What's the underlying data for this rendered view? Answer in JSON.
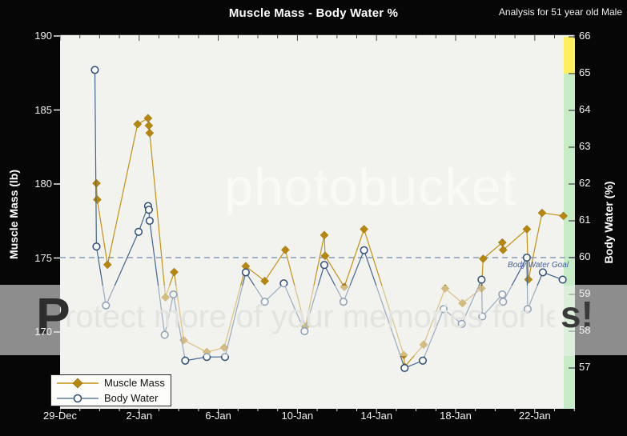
{
  "page": {
    "watermark_brand": "photobucket",
    "watermark_banner_first": "P",
    "watermark_banner_mid": "rotect more of your memories for les",
    "watermark_banner_end": "s!"
  },
  "chart_data": {
    "type": "line",
    "title": "Muscle Mass - Body Water %",
    "annotation": "Analysis for 51 year old Male",
    "x_axis": {
      "tick_labels": [
        "29-Dec",
        "2-Jan",
        "6-Jan",
        "10-Jan",
        "14-Jan",
        "18-Jan",
        "22-Jan"
      ],
      "tick_days": [
        0,
        4,
        8,
        12,
        16,
        20,
        24
      ],
      "minor_tick_interval_days": 1,
      "range_days": [
        0,
        26
      ]
    },
    "y_left": {
      "label": "Muscle Mass (lb)",
      "ticks": [
        190,
        185,
        180,
        175,
        170
      ],
      "range": [
        164.9,
        190.1
      ]
    },
    "y_right": {
      "label": "Body Water (%)",
      "ticks": [
        66,
        65,
        64,
        63,
        62,
        61,
        60,
        59,
        58,
        57
      ],
      "range": [
        55.9,
        66.0
      ]
    },
    "goal_line": {
      "label": "Body Water Goal",
      "axis": "right",
      "value": 60,
      "style": "dashed",
      "color": "#9fb0c9"
    },
    "bands": [
      {
        "axis": "right",
        "from": 65,
        "to": 66,
        "color": "#ffef5f"
      },
      {
        "axis": "right",
        "from": 55.9,
        "to": 65,
        "color": "#c6ecc6"
      }
    ],
    "legend_position": "bottom-left",
    "grid": false,
    "series": [
      {
        "name": "Muscle Mass",
        "axis": "left",
        "color": "#b8860b",
        "line_color": "#c49110",
        "marker": "diamond",
        "points": [
          [
            1.84,
            180.1
          ],
          [
            1.88,
            179.0
          ],
          [
            2.4,
            174.6
          ],
          [
            3.92,
            184.1
          ],
          [
            4.45,
            184.5
          ],
          [
            4.49,
            184.0
          ],
          [
            4.53,
            183.5
          ],
          [
            5.33,
            172.4
          ],
          [
            5.77,
            174.1
          ],
          [
            6.25,
            169.5
          ],
          [
            7.42,
            168.7
          ],
          [
            8.3,
            169.0
          ],
          [
            9.39,
            174.5
          ],
          [
            10.35,
            173.5
          ],
          [
            11.39,
            175.6
          ],
          [
            12.4,
            170.4
          ],
          [
            13.36,
            176.6
          ],
          [
            13.4,
            175.2
          ],
          [
            14.37,
            173.1
          ],
          [
            15.37,
            177.0
          ],
          [
            17.38,
            168.5
          ],
          [
            17.42,
            167.7
          ],
          [
            18.38,
            169.2
          ],
          [
            19.47,
            173.0
          ],
          [
            20.35,
            172.0
          ],
          [
            21.31,
            173.0
          ],
          [
            21.39,
            175.0
          ],
          [
            22.36,
            176.1
          ],
          [
            22.4,
            175.6
          ],
          [
            23.6,
            177.0
          ],
          [
            23.68,
            173.6
          ],
          [
            24.37,
            178.1
          ],
          [
            25.45,
            177.9
          ]
        ]
      },
      {
        "name": "Body Water",
        "axis": "right",
        "color": "#2d4d77",
        "line_color": "#41658f",
        "marker": "open-circle",
        "points": [
          [
            1.76,
            65.1
          ],
          [
            1.84,
            60.3
          ],
          [
            2.32,
            58.7
          ],
          [
            3.97,
            60.7
          ],
          [
            4.45,
            61.4
          ],
          [
            4.49,
            61.3
          ],
          [
            4.53,
            61.0
          ],
          [
            5.29,
            57.9
          ],
          [
            5.73,
            59.0
          ],
          [
            6.33,
            57.2
          ],
          [
            7.42,
            57.3
          ],
          [
            8.34,
            57.3
          ],
          [
            9.39,
            59.6
          ],
          [
            10.35,
            58.8
          ],
          [
            11.31,
            59.3
          ],
          [
            12.36,
            58.0
          ],
          [
            13.36,
            59.8
          ],
          [
            14.33,
            58.8
          ],
          [
            15.37,
            60.2
          ],
          [
            17.42,
            57.0
          ],
          [
            18.34,
            57.2
          ],
          [
            19.39,
            58.6
          ],
          [
            20.31,
            58.2
          ],
          [
            21.31,
            59.4
          ],
          [
            21.35,
            58.4
          ],
          [
            22.36,
            59.0
          ],
          [
            22.4,
            58.8
          ],
          [
            23.6,
            60.0
          ],
          [
            23.64,
            58.6
          ],
          [
            24.41,
            59.6
          ],
          [
            25.41,
            59.4
          ]
        ]
      }
    ]
  }
}
